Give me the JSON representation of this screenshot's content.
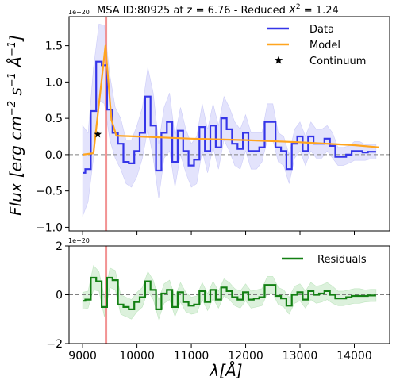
{
  "chart_data": [
    {
      "type": "line",
      "title": "MSA ID:80925 at z = 6.76 - Reduced X² = 1.24",
      "title_parts": {
        "main": "MSA ID:80925 at z = 6.76 - Reduced ",
        "chi": "X",
        "sup": "2",
        "tail": " = 1.24"
      },
      "ylabel": "Flux [erg cm⁻² s⁻¹ Å⁻¹]",
      "ylabel_parts": {
        "a": "Flux [erg cm",
        "b": "−2",
        "c": " s",
        "d": "−1",
        "e": " Å",
        "f": "−1",
        "g": "]"
      },
      "scale_label": "1e−20",
      "xlim": [
        8750,
        14650
      ],
      "ylim": [
        -1.05,
        1.9
      ],
      "yticks": [
        -1.0,
        -0.5,
        0.0,
        0.5,
        1.0,
        1.5
      ],
      "ytick_labels": [
        "−1.0",
        "−0.5",
        "0.0",
        "0.5",
        "1.0",
        "1.5"
      ],
      "legend_position": "top-right",
      "vline_x": 9430,
      "zero_line": true,
      "series": [
        {
          "name": "Data",
          "style": "steps-mid",
          "color": "#3535e8",
          "x": [
            9000,
            9100,
            9200,
            9300,
            9400,
            9500,
            9600,
            9700,
            9800,
            9900,
            10000,
            10100,
            10200,
            10300,
            10400,
            10500,
            10600,
            10700,
            10800,
            10900,
            11000,
            11100,
            11200,
            11300,
            11400,
            11500,
            11600,
            11700,
            11800,
            11900,
            12000,
            12100,
            12200,
            12300,
            12400,
            12500,
            12600,
            12700,
            12800,
            12900,
            13000,
            13100,
            13200,
            13300,
            13400,
            13500,
            13600,
            13700,
            13800,
            13900,
            14000,
            14100,
            14200,
            14300,
            14400
          ],
          "y": [
            -0.25,
            -0.2,
            0.6,
            1.28,
            1.23,
            0.62,
            0.3,
            0.15,
            -0.1,
            -0.12,
            0.05,
            0.3,
            0.8,
            0.4,
            -0.22,
            0.3,
            0.45,
            -0.1,
            0.33,
            0.05,
            -0.15,
            -0.07,
            0.38,
            0.05,
            0.4,
            0.1,
            0.5,
            0.35,
            0.15,
            0.08,
            0.3,
            0.05,
            0.05,
            0.1,
            0.45,
            0.45,
            0.1,
            0.05,
            -0.2,
            0.15,
            0.25,
            0.05,
            0.25,
            0.15,
            0.15,
            0.22,
            0.12,
            -0.03,
            -0.03,
            0.0,
            0.05,
            0.05,
            0.03,
            0.04,
            0.04
          ],
          "band_lower": [
            -0.85,
            -0.65,
            -0.05,
            0.75,
            0.7,
            0.2,
            -0.05,
            -0.2,
            -0.4,
            -0.45,
            -0.3,
            -0.05,
            0.35,
            -0.05,
            -0.6,
            -0.05,
            0.05,
            -0.45,
            0.0,
            -0.25,
            -0.45,
            -0.4,
            0.05,
            -0.25,
            0.1,
            -0.2,
            0.2,
            0.05,
            -0.15,
            -0.2,
            0.05,
            -0.2,
            -0.2,
            -0.1,
            0.2,
            0.2,
            -0.1,
            -0.15,
            -0.4,
            -0.05,
            0.05,
            -0.15,
            0.05,
            -0.05,
            -0.05,
            0.05,
            -0.05,
            -0.15,
            -0.15,
            -0.12,
            -0.08,
            -0.08,
            -0.08,
            -0.06,
            -0.06
          ],
          "band_upper": [
            0.4,
            0.3,
            1.2,
            1.8,
            1.78,
            1.1,
            0.65,
            0.5,
            0.2,
            0.2,
            0.4,
            0.65,
            1.2,
            0.85,
            0.15,
            0.65,
            0.85,
            0.25,
            0.65,
            0.35,
            0.15,
            0.25,
            0.7,
            0.35,
            0.7,
            0.4,
            0.8,
            0.65,
            0.45,
            0.35,
            0.55,
            0.3,
            0.3,
            0.3,
            0.7,
            0.7,
            0.3,
            0.25,
            0.0,
            0.35,
            0.45,
            0.25,
            0.45,
            0.35,
            0.35,
            0.4,
            0.3,
            0.1,
            0.1,
            0.12,
            0.18,
            0.18,
            0.14,
            0.14,
            0.14
          ]
        },
        {
          "name": "Model",
          "style": "line",
          "color": "#ffa51f",
          "x": [
            9000,
            9200,
            9420,
            9530,
            9620,
            10000,
            11000,
            12000,
            13000,
            14000,
            14450
          ],
          "y": [
            0.0,
            0.02,
            1.5,
            0.48,
            0.26,
            0.25,
            0.22,
            0.2,
            0.17,
            0.13,
            0.1
          ]
        },
        {
          "name": "Continuum",
          "style": "marker-star",
          "color": "#000000",
          "x": [
            9280
          ],
          "y": [
            0.28
          ]
        }
      ]
    },
    {
      "type": "line",
      "xlabel": "λ[Å]",
      "xlabel_parts": {
        "lambda": "λ",
        "unit": "[Å]"
      },
      "scale_label": "1e−20",
      "xlim": [
        8750,
        14650
      ],
      "ylim": [
        -2.0,
        2.0
      ],
      "yticks": [
        -2,
        0,
        2
      ],
      "ytick_labels": [
        "−2",
        "0",
        "2"
      ],
      "xticks": [
        9000,
        10000,
        11000,
        12000,
        13000,
        14000
      ],
      "xtick_labels": [
        "9000",
        "10000",
        "11000",
        "12000",
        "13000",
        "14000"
      ],
      "legend_position": "top-right",
      "vline_x": 9430,
      "zero_line": true,
      "series": [
        {
          "name": "Residuals",
          "style": "steps-mid",
          "color": "#138013",
          "x": [
            9000,
            9100,
            9200,
            9300,
            9400,
            9500,
            9600,
            9700,
            9800,
            9900,
            10000,
            10100,
            10200,
            10300,
            10400,
            10500,
            10600,
            10700,
            10800,
            10900,
            11000,
            11100,
            11200,
            11300,
            11400,
            11500,
            11600,
            11700,
            11800,
            11900,
            12000,
            12100,
            12200,
            12300,
            12400,
            12500,
            12600,
            12700,
            12800,
            12900,
            13000,
            13100,
            13200,
            13300,
            13400,
            13500,
            13600,
            13700,
            13800,
            13900,
            14000,
            14100,
            14200,
            14300,
            14400
          ],
          "y": [
            -0.25,
            -0.2,
            0.7,
            0.55,
            -0.5,
            0.7,
            0.6,
            -0.4,
            -0.5,
            -0.6,
            -0.3,
            -0.1,
            0.55,
            0.2,
            -0.6,
            0.05,
            0.2,
            -0.5,
            0.1,
            -0.3,
            -0.45,
            -0.4,
            0.15,
            -0.3,
            0.2,
            -0.2,
            0.3,
            0.15,
            -0.1,
            -0.2,
            0.1,
            -0.2,
            -0.15,
            -0.1,
            0.4,
            0.4,
            -0.05,
            -0.15,
            -0.45,
            0.0,
            0.1,
            -0.2,
            0.15,
            0.0,
            0.05,
            0.15,
            0.0,
            -0.15,
            -0.15,
            -0.1,
            -0.05,
            -0.05,
            -0.05,
            -0.03,
            -0.03
          ],
          "band_lower": [
            -0.6,
            -0.55,
            0.2,
            0.15,
            -0.9,
            0.3,
            0.2,
            -0.8,
            -0.9,
            -1.0,
            -0.7,
            -0.5,
            0.15,
            -0.2,
            -1.0,
            -0.35,
            -0.2,
            -0.9,
            -0.3,
            -0.7,
            -0.8,
            -0.75,
            -0.2,
            -0.65,
            -0.15,
            -0.55,
            -0.05,
            -0.2,
            -0.45,
            -0.55,
            -0.25,
            -0.55,
            -0.5,
            -0.45,
            0.05,
            0.05,
            -0.4,
            -0.5,
            -0.8,
            -0.35,
            -0.25,
            -0.55,
            -0.2,
            -0.35,
            -0.3,
            -0.2,
            -0.35,
            -0.45,
            -0.45,
            -0.4,
            -0.35,
            -0.35,
            -0.3,
            -0.28,
            -0.28
          ],
          "band_upper": [
            0.1,
            0.15,
            1.2,
            0.95,
            -0.1,
            1.1,
            1.0,
            0.0,
            -0.1,
            -0.2,
            0.1,
            0.3,
            0.95,
            0.6,
            -0.2,
            0.45,
            0.6,
            -0.1,
            0.5,
            0.1,
            -0.1,
            -0.05,
            0.5,
            0.05,
            0.55,
            0.15,
            0.65,
            0.5,
            0.25,
            0.15,
            0.45,
            0.15,
            0.2,
            0.25,
            0.75,
            0.75,
            0.3,
            0.2,
            -0.1,
            0.35,
            0.45,
            0.15,
            0.5,
            0.35,
            0.4,
            0.5,
            0.35,
            0.15,
            0.15,
            0.2,
            0.25,
            0.25,
            0.2,
            0.22,
            0.22
          ]
        }
      ]
    }
  ],
  "colors": {
    "data_band": "#8080f0",
    "residual_band": "#5fbf5f",
    "vline": "#f08080",
    "zero_line": "#808080"
  }
}
